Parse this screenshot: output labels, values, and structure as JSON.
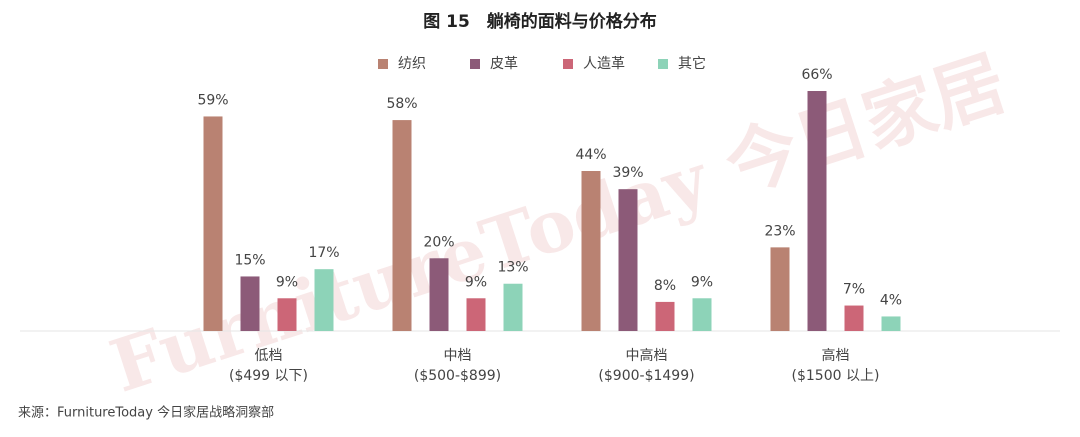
{
  "chart_data": {
    "type": "bar",
    "title": "图 15　躺椅的面料与价格分布",
    "categories": [
      "低档",
      "中档",
      "中高档",
      "高档"
    ],
    "category_notes": [
      "($499 以下)",
      "($500-$899)",
      "($900-$1499)",
      "($1500 以上)"
    ],
    "series": [
      {
        "name": "纺织",
        "color": "#b98272",
        "values": [
          59,
          58,
          44,
          23
        ],
        "value_labels": [
          "59%",
          "58%",
          "44%",
          "23%"
        ]
      },
      {
        "name": "皮革",
        "color": "#8c5a78",
        "values": [
          15,
          20,
          39,
          66
        ],
        "value_labels": [
          "15%",
          "20%",
          "39%",
          "66%"
        ]
      },
      {
        "name": "人造革",
        "color": "#cc6677",
        "values": [
          9,
          9,
          8,
          7
        ],
        "value_labels": [
          "9%",
          "9%",
          "8%",
          "7%"
        ]
      },
      {
        "name": "其它",
        "color": "#8dd3b8",
        "values": [
          17,
          13,
          9,
          4
        ],
        "value_labels": [
          "17%",
          "13%",
          "9%",
          "4%"
        ]
      }
    ],
    "ylim": [
      0,
      66
    ],
    "legend": "top",
    "watermark": "FurnitureToday 今日家居",
    "source": "来源：FurnitureToday 今日家居战略洞察部"
  }
}
